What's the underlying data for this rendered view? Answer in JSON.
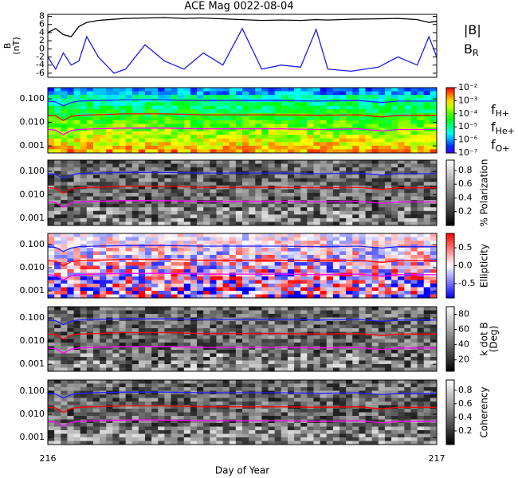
{
  "chart_data": [
    {
      "type": "line",
      "title": "ACE Mag 0022-08-04",
      "ylabel": [
        "B",
        "(nT)"
      ],
      "ylim": [
        -7,
        8.5
      ],
      "yticks": [
        8,
        6,
        4,
        2,
        0,
        -2,
        -4,
        -6
      ],
      "x": [
        216.0,
        216.02,
        216.04,
        216.06,
        216.08,
        216.1,
        216.13,
        216.17,
        216.2,
        216.25,
        216.3,
        216.35,
        216.4,
        216.45,
        216.5,
        216.55,
        216.6,
        216.65,
        216.69,
        216.72,
        216.78,
        216.85,
        216.9,
        216.95,
        216.98,
        217.0
      ],
      "series": [
        {
          "name": "|B|",
          "color": "#000000",
          "values": [
            4,
            5,
            3.5,
            3,
            5.5,
            6.5,
            7,
            7.3,
            7.5,
            7.6,
            7.7,
            7.5,
            7.6,
            7.4,
            7.2,
            7,
            7.1,
            7,
            7.2,
            7.1,
            7.3,
            7.4,
            7.5,
            7.2,
            6.5,
            6.8
          ]
        },
        {
          "name": "BR",
          "color": "#1c1ce6",
          "values": [
            -2,
            -5,
            -1,
            -4,
            -3,
            3,
            -2,
            -6,
            -5,
            1,
            -3,
            -5,
            -1,
            -4,
            5,
            -5,
            -4,
            -4.5,
            4.8,
            -5,
            -5.5,
            -4.5,
            -2,
            -4,
            3,
            -2
          ]
        }
      ]
    },
    {
      "type": "spectrogram",
      "colormap": "rainbow",
      "ylim": [
        0.0005,
        0.3
      ],
      "yticks": [
        {
          "value": 0.1,
          "label": "0.100"
        },
        {
          "value": 0.01,
          "label": "0.010"
        },
        {
          "value": 0.001,
          "label": "0.001"
        }
      ],
      "colorbar_lim": [
        1e-07,
        0.01
      ],
      "colorbar_ticks": [
        {
          "value": 0.01,
          "label": "10⁻²"
        },
        {
          "value": 0.001,
          "label": "10⁻³"
        },
        {
          "value": 0.0001,
          "label": "10⁻⁴"
        },
        {
          "value": 1e-05,
          "label": "10⁻⁵"
        },
        {
          "value": 1e-06,
          "label": "10⁻⁶"
        },
        {
          "value": 1e-07,
          "label": "10⁻⁷"
        }
      ],
      "x": [
        216.0,
        216.02,
        216.04,
        216.06,
        216.08,
        216.12,
        216.2,
        216.3,
        216.4,
        216.5,
        216.6,
        216.7,
        216.8,
        216.86,
        216.9,
        216.95,
        217.0
      ],
      "series": [
        {
          "name": "fH+",
          "color": "#2020ff",
          "values": [
            0.08,
            0.075,
            0.05,
            0.07,
            0.08,
            0.085,
            0.09,
            0.09,
            0.085,
            0.085,
            0.085,
            0.08,
            0.085,
            0.07,
            0.08,
            0.08,
            0.08
          ]
        },
        {
          "name": "fHe+",
          "color": "#ff0000",
          "values": [
            0.02,
            0.019,
            0.012,
            0.018,
            0.02,
            0.021,
            0.023,
            0.023,
            0.021,
            0.021,
            0.021,
            0.02,
            0.021,
            0.017,
            0.02,
            0.02,
            0.02
          ]
        },
        {
          "name": "fO+",
          "color": "#ff00ff",
          "values": [
            0.005,
            0.0047,
            0.003,
            0.0045,
            0.005,
            0.0053,
            0.0057,
            0.0057,
            0.0053,
            0.0053,
            0.0053,
            0.005,
            0.0053,
            0.0043,
            0.005,
            0.005,
            0.005
          ]
        }
      ]
    },
    {
      "type": "spectrogram",
      "colormap": "gray",
      "colorbar_label": [
        "% Polarization"
      ],
      "ylim": [
        0.0005,
        0.3
      ],
      "yticks": [
        {
          "value": 0.1,
          "label": "0.100"
        },
        {
          "value": 0.01,
          "label": "0.010"
        },
        {
          "value": 0.001,
          "label": "0.001"
        }
      ],
      "colorbar_lim": [
        0,
        0.95
      ],
      "colorbar_ticks": [
        0.8,
        0.6,
        0.4,
        0.2
      ]
    },
    {
      "type": "spectrogram",
      "colormap": "bwr",
      "colorbar_label": [
        "Ellipticity"
      ],
      "ylim": [
        0.0005,
        0.3
      ],
      "yticks": [
        {
          "value": 0.1,
          "label": "0.100"
        },
        {
          "value": 0.01,
          "label": "0.010"
        },
        {
          "value": 0.001,
          "label": "0.001"
        }
      ],
      "colorbar_lim": [
        -0.9,
        0.9
      ],
      "colorbar_ticks": [
        0.5,
        {
          "value": 0,
          "label": "0.0"
        },
        -0.5
      ]
    },
    {
      "type": "spectrogram",
      "colormap": "gray",
      "colorbar_label": [
        "k dot B",
        "(Deg)"
      ],
      "ylim": [
        0.0005,
        0.3
      ],
      "yticks": [
        {
          "value": 0.1,
          "label": "0.100"
        },
        {
          "value": 0.01,
          "label": "0.010"
        },
        {
          "value": 0.001,
          "label": "0.001"
        }
      ],
      "colorbar_lim": [
        5,
        90
      ],
      "colorbar_ticks": [
        80,
        60,
        40,
        20
      ]
    },
    {
      "type": "spectrogram",
      "colormap": "gray",
      "colorbar_label": [
        "Coherency"
      ],
      "ylim": [
        0.0005,
        0.3
      ],
      "yticks": [
        {
          "value": 0.1,
          "label": "0.100"
        },
        {
          "value": 0.01,
          "label": "0.010"
        },
        {
          "value": 0.001,
          "label": "0.001"
        }
      ],
      "colorbar_lim": [
        0,
        0.95
      ],
      "colorbar_ticks": [
        0.8,
        0.6,
        0.4,
        0.2
      ],
      "xlim": [
        216,
        217
      ],
      "xticks": [
        216,
        217
      ],
      "xlabel": "Day of Year"
    }
  ]
}
